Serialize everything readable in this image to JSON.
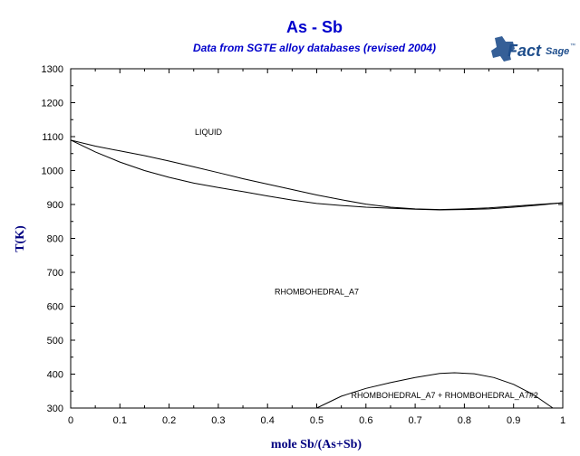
{
  "chart_data": {
    "type": "line",
    "title": "As - Sb",
    "subtitle": "Data from SGTE alloy databases (revised 2004)",
    "xlabel": "mole Sb/(As+Sb)",
    "ylabel": "T(K)",
    "xlim": [
      0,
      1
    ],
    "ylim": [
      300,
      1300
    ],
    "x_ticks": [
      "0",
      "0.1",
      "0.2",
      "0.3",
      "0.4",
      "0.5",
      "0.6",
      "0.7",
      "0.8",
      "0.9",
      "1"
    ],
    "y_ticks": [
      "300",
      "400",
      "500",
      "600",
      "700",
      "800",
      "900",
      "1000",
      "1100",
      "1200",
      "1300"
    ],
    "grid": false,
    "series": [
      {
        "x": [
          0,
          0.05,
          0.1,
          0.15,
          0.2,
          0.25,
          0.3,
          0.35,
          0.4,
          0.45,
          0.5,
          0.55,
          0.6,
          0.65,
          0.7,
          0.75,
          0.8,
          0.85,
          0.9,
          0.95,
          1.0
        ],
        "y": [
          1090,
          1072,
          1058,
          1044,
          1028,
          1011,
          994,
          976,
          960,
          944,
          928,
          914,
          901,
          892,
          887,
          885,
          887,
          890,
          895,
          900,
          905
        ]
      },
      {
        "x": [
          0,
          0.05,
          0.1,
          0.15,
          0.2,
          0.25,
          0.3,
          0.35,
          0.4,
          0.45,
          0.5,
          0.55,
          0.6,
          0.65,
          0.7,
          0.75,
          0.8,
          0.85,
          0.9,
          0.95,
          1.0
        ],
        "y": [
          1090,
          1055,
          1025,
          1000,
          980,
          963,
          950,
          938,
          925,
          913,
          903,
          897,
          892,
          889,
          886,
          884,
          885,
          887,
          892,
          898,
          905
        ]
      },
      {
        "x": [
          0.5,
          0.55,
          0.6,
          0.65,
          0.7,
          0.75,
          0.78,
          0.82,
          0.86,
          0.9,
          0.94,
          0.98
        ],
        "y": [
          300,
          335,
          358,
          375,
          390,
          402,
          404,
          401,
          390,
          370,
          340,
          300
        ]
      }
    ],
    "annotations": [
      {
        "text": "LIQUID",
        "x": 0.28,
        "y": 1105
      },
      {
        "text": "RHOMBOHEDRAL_A7",
        "x": 0.5,
        "y": 635
      },
      {
        "text": "RHOMBOHEDRAL_A7 + RHOMBOHEDRAL_A7#2",
        "x": 0.76,
        "y": 330
      }
    ]
  },
  "logo": {
    "brand": "FactSage",
    "part1": "Fact",
    "part2": "Sage",
    "tm": "™"
  },
  "colors": {
    "title": "#0000cc",
    "axis_label": "#000080",
    "curve": "#000000",
    "logo_blue": "#1f4e8c",
    "logo_red": "#cc3333"
  }
}
